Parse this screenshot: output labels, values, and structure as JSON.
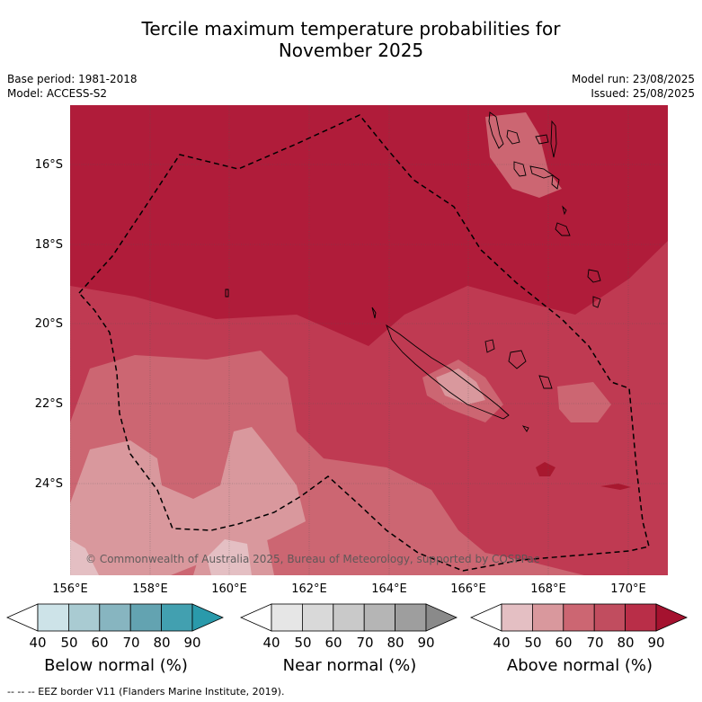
{
  "title": {
    "line1": "Tercile maximum temperature probabilities for",
    "line2": "November 2025"
  },
  "meta": {
    "base_period": "Base period: 1981-2018",
    "model": "Model: ACCESS-S2",
    "model_run": "Model run: 23/08/2025",
    "issued": "Issued: 25/08/2025"
  },
  "map": {
    "lon_labels": [
      "156°E",
      "158°E",
      "160°E",
      "162°E",
      "164°E",
      "166°E",
      "168°E",
      "170°E"
    ],
    "lat_labels": [
      "16°S",
      "18°S",
      "20°S",
      "22°S",
      "24°S"
    ],
    "copyright": "© Commonwealth of Australia 2025, Bureau of Meteorology, supported by COSPPac",
    "colors": {
      "ocean_above_90": "#b01c3a",
      "above_80": "#bf3a52",
      "above_70": "#cc6672",
      "above_60": "#d9989d",
      "above_50": "#e4bfc3"
    }
  },
  "colorbars": [
    {
      "title": "Below normal (%)",
      "ticks": [
        "40",
        "50",
        "60",
        "70",
        "80",
        "90"
      ],
      "colors": [
        "#ffffff",
        "#cde3e8",
        "#a9cbd2",
        "#87b5c0",
        "#63a3b1",
        "#42a0b0",
        "#2a9aab"
      ]
    },
    {
      "title": "Near normal (%)",
      "ticks": [
        "40",
        "50",
        "60",
        "70",
        "80",
        "90"
      ],
      "colors": [
        "#ffffff",
        "#e6e6e6",
        "#d9d9d9",
        "#c9c9c9",
        "#b5b5b5",
        "#9e9e9e",
        "#8a8a8a"
      ]
    },
    {
      "title": "Above normal (%)",
      "ticks": [
        "40",
        "50",
        "60",
        "70",
        "80",
        "90"
      ],
      "colors": [
        "#ffffff",
        "#e4bfc3",
        "#d9989d",
        "#cc6672",
        "#c14d5f",
        "#b92e48",
        "#a5122f"
      ]
    }
  ],
  "footer": "-- -- -- EEZ border V11 (Flanders Marine Institute, 2019)."
}
